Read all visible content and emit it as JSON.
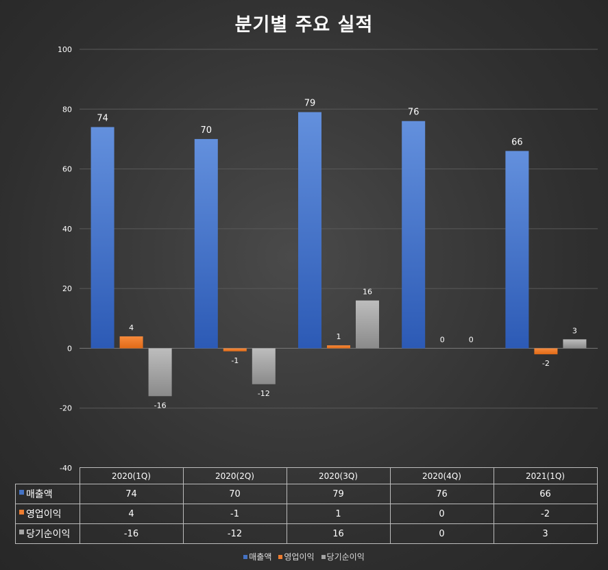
{
  "chart_data": {
    "type": "bar",
    "title": "분기별 주요 실적",
    "categories": [
      "2020(1Q)",
      "2020(2Q)",
      "2020(3Q)",
      "2020(4Q)",
      "2021(1Q)"
    ],
    "series": [
      {
        "name": "매출액",
        "values": [
          74,
          70,
          79,
          76,
          66
        ],
        "color": "#4472c4"
      },
      {
        "name": "영업이익",
        "values": [
          4,
          -1,
          1,
          0,
          -2
        ],
        "color": "#ed7d31"
      },
      {
        "name": "당기순이익",
        "values": [
          -16,
          -12,
          16,
          0,
          3
        ],
        "color": "#a5a5a5"
      }
    ],
    "ylim": [
      -40,
      100
    ],
    "yticks": [
      100,
      80,
      60,
      40,
      20,
      0,
      -20,
      -40
    ],
    "grid": true,
    "legend_position": "bottom",
    "data_table": true
  }
}
